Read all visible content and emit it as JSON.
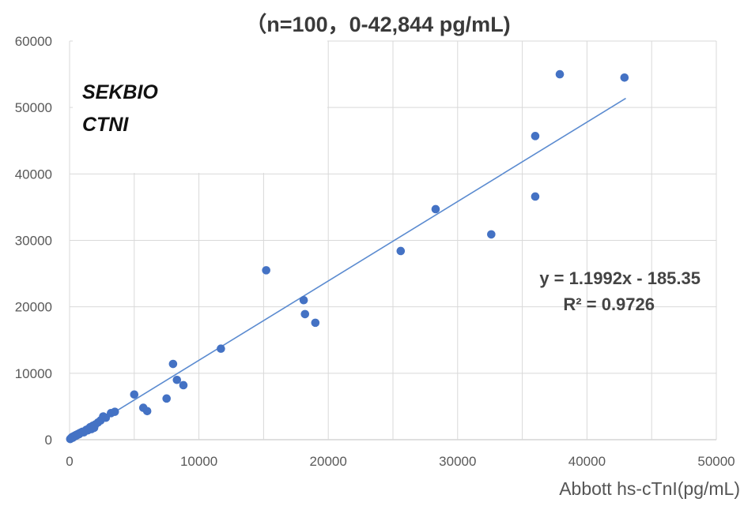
{
  "chart_data": {
    "type": "scatter",
    "title": "（n=100，0-42,844 pg/mL)",
    "xlabel": "Abbott hs-cTnI(pg/mL)",
    "ylabel": "",
    "xlim": [
      0,
      50000
    ],
    "ylim": [
      0,
      60000
    ],
    "x_ticks": [
      "0",
      "10000",
      "20000",
      "30000",
      "40000",
      "50000"
    ],
    "y_ticks": [
      "0",
      "10000",
      "20000",
      "30000",
      "40000",
      "50000",
      "60000"
    ],
    "grid": true,
    "legend": "none",
    "marker_color": "#4472C4",
    "trendline_color": "#5B8BD0",
    "trendline": {
      "slope": 1.1992,
      "intercept": -185.35,
      "x_range": [
        0,
        43000
      ]
    },
    "equation": "y = 1.1992x - 185.35",
    "r_squared": "R² = 0.9726",
    "annotation": [
      "SEKBIO",
      "CTNI"
    ],
    "points": [
      [
        50,
        100
      ],
      [
        100,
        200
      ],
      [
        150,
        300
      ],
      [
        200,
        400
      ],
      [
        250,
        300
      ],
      [
        300,
        500
      ],
      [
        350,
        450
      ],
      [
        400,
        600
      ],
      [
        450,
        550
      ],
      [
        500,
        700
      ],
      [
        550,
        650
      ],
      [
        600,
        800
      ],
      [
        650,
        750
      ],
      [
        700,
        900
      ],
      [
        750,
        850
      ],
      [
        800,
        1000
      ],
      [
        900,
        1100
      ],
      [
        1000,
        1200
      ],
      [
        1100,
        1100
      ],
      [
        1200,
        1300
      ],
      [
        1300,
        1500
      ],
      [
        1400,
        1400
      ],
      [
        1500,
        1700
      ],
      [
        1600,
        1900
      ],
      [
        1700,
        1600
      ],
      [
        1800,
        2100
      ],
      [
        1900,
        1800
      ],
      [
        2000,
        2300
      ],
      [
        2200,
        2600
      ],
      [
        2400,
        2900
      ],
      [
        2600,
        3500
      ],
      [
        2800,
        3300
      ],
      [
        3200,
        4000
      ],
      [
        3500,
        4200
      ],
      [
        5000,
        6800
      ],
      [
        5700,
        4800
      ],
      [
        6000,
        4300
      ],
      [
        7500,
        6200
      ],
      [
        8000,
        11400
      ],
      [
        8300,
        9000
      ],
      [
        8800,
        8200
      ],
      [
        11700,
        13700
      ],
      [
        15200,
        25500
      ],
      [
        18100,
        21000
      ],
      [
        18200,
        18900
      ],
      [
        19000,
        17600
      ],
      [
        25600,
        28400
      ],
      [
        28300,
        34700
      ],
      [
        32600,
        30900
      ],
      [
        36000,
        45700
      ],
      [
        36000,
        36600
      ],
      [
        37900,
        55000
      ],
      [
        42900,
        54500
      ]
    ]
  }
}
